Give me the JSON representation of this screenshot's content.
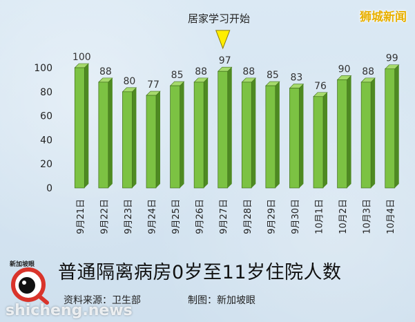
{
  "brand": "狮城新闻",
  "annotation": "居家学习开始",
  "title": "普通隔离病房0岁至11岁住院人数",
  "source": "资料来源：卫生部",
  "credit": "制图：新加坡眼",
  "logo_text": "新加坡眼",
  "watermark": "shicheng.news",
  "colors": {
    "bar_front": "#7cc243",
    "bar_side": "#4e8a22",
    "bar_top": "#a6da6c",
    "annotation_marker": "#ffee00",
    "brand": "#e8b000",
    "logo_ring": "#d9342b"
  },
  "chart_data": {
    "type": "bar",
    "categories": [
      "9月21日",
      "9月22日",
      "9月23日",
      "9月24日",
      "9月25日",
      "9月26日",
      "9月27日",
      "9月28日",
      "9月29日",
      "9月30日",
      "10月1日",
      "10月2日",
      "10月3日",
      "10月4日"
    ],
    "values": [
      100,
      88,
      80,
      77,
      85,
      88,
      97,
      88,
      85,
      83,
      76,
      90,
      88,
      99
    ],
    "ylim": [
      0,
      100
    ],
    "yticks": [
      0,
      20,
      40,
      60,
      80,
      100
    ],
    "annotation_category": "9月27日",
    "grid": false,
    "legend": "none"
  }
}
